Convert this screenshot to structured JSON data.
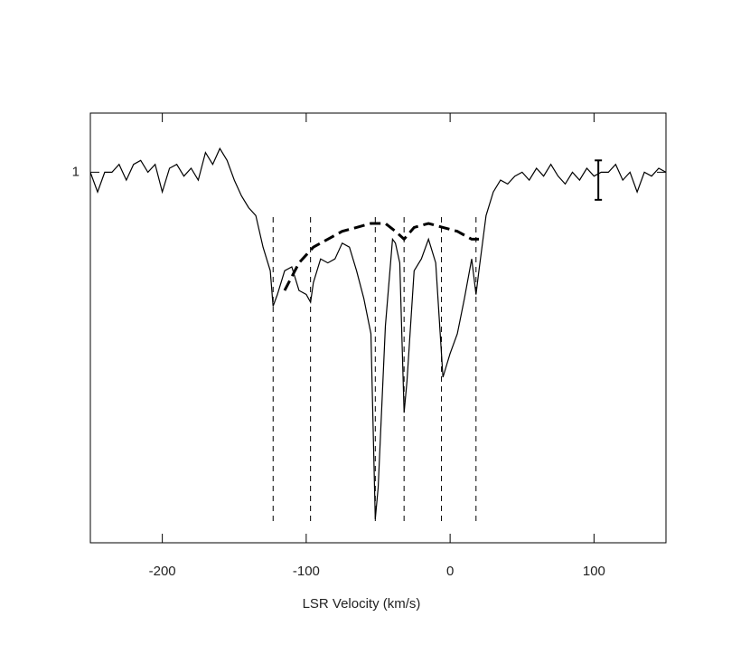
{
  "chart_data": {
    "type": "line",
    "xlabel": "LSR Velocity (km/s)",
    "xlim": [
      -250,
      150
    ],
    "xticks": [
      -200,
      -100,
      0,
      100
    ],
    "ylim": [
      0.06,
      1.15
    ],
    "yticks": [
      1
    ],
    "series": [
      {
        "color": "#000000",
        "dashed": false,
        "x": [
          -250,
          -245,
          -240,
          -235,
          -230,
          -225,
          -220,
          -215,
          -210,
          -205,
          -200,
          -195,
          -190,
          -185,
          -180,
          -175,
          -170,
          -165,
          -160,
          -155,
          -150,
          -145,
          -140,
          -135,
          -130,
          -125,
          -123,
          -120,
          -115,
          -110,
          -105,
          -100,
          -97,
          -95,
          -90,
          -85,
          -80,
          -75,
          -70,
          -65,
          -60,
          -55,
          -52,
          -50,
          -45,
          -40,
          -38,
          -35,
          -32,
          -30,
          -25,
          -20,
          -15,
          -10,
          -5,
          0,
          5,
          10,
          15,
          18,
          20,
          25,
          30,
          35,
          40,
          45,
          50,
          55,
          60,
          65,
          70,
          75,
          80,
          85,
          90,
          95,
          100,
          105,
          110,
          115,
          120,
          125,
          130,
          135,
          140,
          145,
          150
        ],
        "values": [
          1.0,
          0.95,
          1.0,
          1.0,
          1.02,
          0.98,
          1.02,
          1.03,
          1.0,
          1.02,
          0.95,
          1.01,
          1.02,
          0.99,
          1.01,
          0.98,
          1.05,
          1.02,
          1.06,
          1.03,
          0.98,
          0.94,
          0.91,
          0.89,
          0.81,
          0.75,
          0.66,
          0.69,
          0.75,
          0.76,
          0.7,
          0.69,
          0.67,
          0.72,
          0.78,
          0.77,
          0.78,
          0.82,
          0.81,
          0.75,
          0.68,
          0.59,
          0.12,
          0.2,
          0.61,
          0.83,
          0.82,
          0.77,
          0.39,
          0.47,
          0.75,
          0.78,
          0.83,
          0.77,
          0.48,
          0.54,
          0.59,
          0.68,
          0.78,
          0.69,
          0.75,
          0.89,
          0.95,
          0.98,
          0.97,
          0.99,
          1.0,
          0.98,
          1.01,
          0.99,
          1.02,
          0.99,
          0.97,
          1.0,
          0.98,
          1.01,
          0.99,
          1.0,
          1.0,
          1.02,
          0.98,
          1.0,
          0.95,
          1.0,
          0.99,
          1.01,
          1.0
        ]
      },
      {
        "color": "#000000",
        "dashed": true,
        "x": [
          -115,
          -105,
          -95,
          -85,
          -75,
          -65,
          -55,
          -45,
          -38,
          -32,
          -25,
          -15,
          -5,
          5,
          15,
          20
        ],
        "values": [
          0.7,
          0.77,
          0.81,
          0.83,
          0.85,
          0.86,
          0.87,
          0.87,
          0.85,
          0.83,
          0.86,
          0.87,
          0.86,
          0.85,
          0.83,
          0.83
        ]
      }
    ],
    "vlines": [
      -123,
      -97,
      -52,
      -32,
      -6,
      18
    ],
    "error_bar": {
      "x": 103,
      "y": 0.98,
      "error": 0.05
    }
  }
}
